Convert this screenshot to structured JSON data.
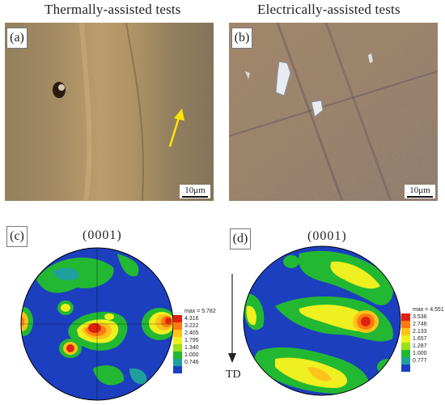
{
  "columns": {
    "left_title": "Thermally-assisted tests",
    "right_title": "Electrically-assisted tests"
  },
  "panels": {
    "a": "(a)",
    "b": "(b)",
    "c": "(c)",
    "d": "(d)"
  },
  "scale_bar": {
    "a": "10μm",
    "b": "10μm"
  },
  "pole_figure": {
    "c_title": "(0001)",
    "d_title": "(0001)",
    "direction_label": "TD"
  },
  "legend_c": {
    "max": "max = 5.782",
    "values": [
      "4.316",
      "3.222",
      "2.405",
      "1.795",
      "1.340",
      "1.000",
      "0.746"
    ],
    "colors": [
      "#e02010",
      "#ff7a10",
      "#ffc21a",
      "#eef020",
      "#9be01a",
      "#23b832",
      "#1fa09c",
      "#1c3fbf"
    ]
  },
  "legend_d": {
    "max": "max = 4.551",
    "values": [
      "3.536",
      "2.746",
      "2.133",
      "1.657",
      "1.287",
      "1.000",
      "0.777"
    ],
    "colors": [
      "#e02010",
      "#ff7a10",
      "#ffc21a",
      "#eef020",
      "#9be01a",
      "#23b832",
      "#1fa09c",
      "#1c3fbf"
    ]
  },
  "colors": {
    "arrow_yellow": "#ffe600",
    "pf_background": "#1c3fbf"
  }
}
